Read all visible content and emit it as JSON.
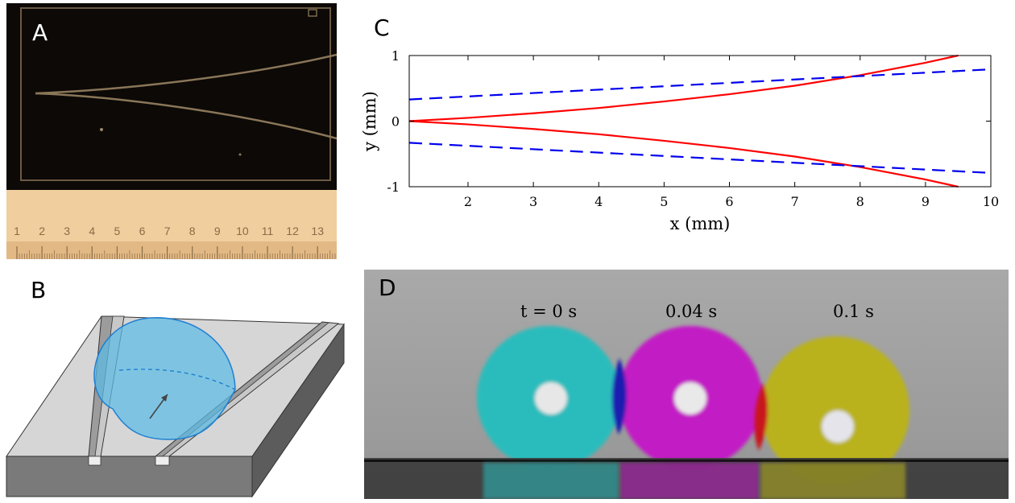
{
  "panels": {
    "a": {
      "letter": "A"
    },
    "b": {
      "letter": "B"
    },
    "c": {
      "letter": "C"
    },
    "d": {
      "letter": "D"
    }
  },
  "ruler": {
    "ticks": [
      "1",
      "2",
      "3",
      "4",
      "5",
      "6",
      "7",
      "8",
      "9",
      "10",
      "11",
      "12",
      "13"
    ]
  },
  "frames": {
    "t0": "t = 0 s",
    "t1": "0.04 s",
    "t2": "0.1 s"
  },
  "colors": {
    "frame_t0": "#2bbcbc",
    "frame_t1": "#c21cc4",
    "frame_t2": "#b9b21a",
    "overlap_t0_t1": "#1a1fb0",
    "overlap_t1_t2": "#c8141c",
    "drop_fill": "#5bbde6",
    "drop_edge": "#1f7fd1",
    "photo_bg": "#0c0906"
  },
  "chart_data": {
    "type": "line",
    "xlabel": "x (mm)",
    "ylabel": "y (mm)",
    "xlim": [
      1.1,
      10
    ],
    "ylim": [
      -1,
      1
    ],
    "xticks": [
      2,
      3,
      4,
      5,
      6,
      7,
      8,
      9,
      10
    ],
    "yticks": [
      -1,
      0,
      1
    ],
    "grid": false,
    "series": [
      {
        "style": "solid",
        "color": "#ff0000",
        "x": [
          1.1,
          2,
          3,
          4,
          5,
          6,
          7,
          8,
          9,
          9.5
        ],
        "y": [
          0,
          0.05,
          0.12,
          0.2,
          0.3,
          0.41,
          0.54,
          0.7,
          0.89,
          1.0
        ]
      },
      {
        "style": "solid",
        "color": "#ff0000",
        "x": [
          1.1,
          2,
          3,
          4,
          5,
          6,
          7,
          8,
          9,
          9.5
        ],
        "y": [
          0,
          -0.05,
          -0.12,
          -0.2,
          -0.3,
          -0.41,
          -0.54,
          -0.7,
          -0.89,
          -1.0
        ]
      },
      {
        "style": "dashed",
        "color": "#0000ee",
        "x": [
          1.1,
          10
        ],
        "y": [
          0.33,
          0.79
        ]
      },
      {
        "style": "dashed",
        "color": "#0000ee",
        "x": [
          1.1,
          10
        ],
        "y": [
          -0.33,
          -0.79
        ]
      }
    ]
  }
}
